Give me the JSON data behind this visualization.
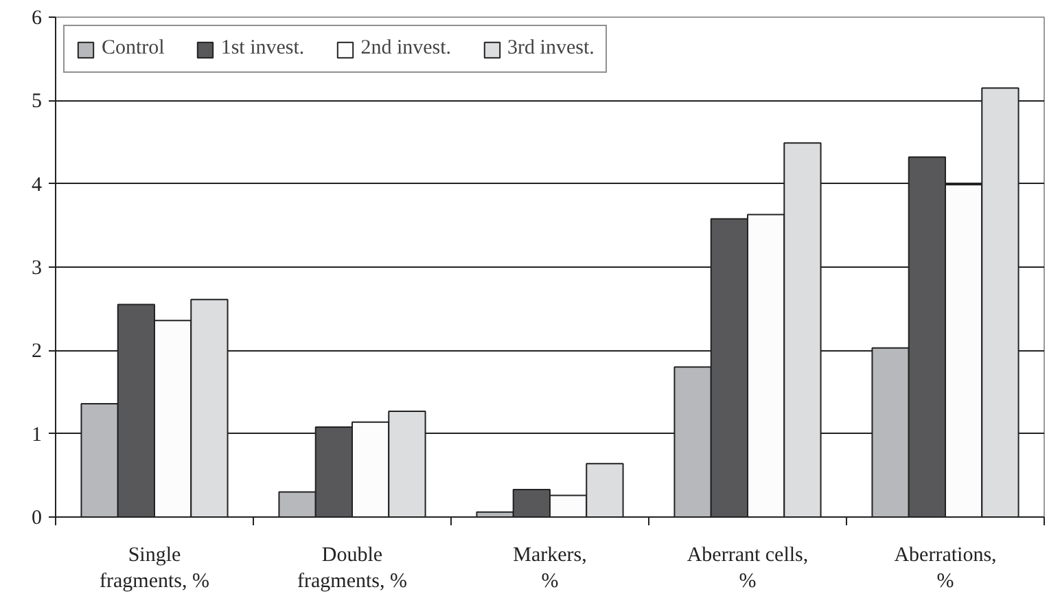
{
  "chart_data": {
    "type": "bar",
    "categories": [
      "Single\nfragments, %",
      "Double\nfragments, %",
      "Markers,\n%",
      "Aberrant cells,\n%",
      "Aberrations,\n%"
    ],
    "series": [
      {
        "name": "Control",
        "color": "#b7b8bb",
        "values": [
          1.36,
          0.3,
          0.06,
          1.8,
          2.03
        ]
      },
      {
        "name": "1st invest.",
        "color": "#58585a",
        "values": [
          2.55,
          1.08,
          0.33,
          3.58,
          4.32
        ]
      },
      {
        "name": "2nd invest.",
        "color": "#fcfcfc",
        "values": [
          2.36,
          1.14,
          0.26,
          3.63,
          3.99
        ]
      },
      {
        "name": "3rd invest.",
        "color": "#dcdddf",
        "values": [
          2.61,
          1.27,
          0.64,
          4.49,
          5.15
        ]
      }
    ],
    "ylim": [
      0,
      6
    ],
    "yticks": [
      0,
      1,
      2,
      3,
      4,
      5,
      6
    ],
    "grid": "y",
    "legend": "top left"
  }
}
